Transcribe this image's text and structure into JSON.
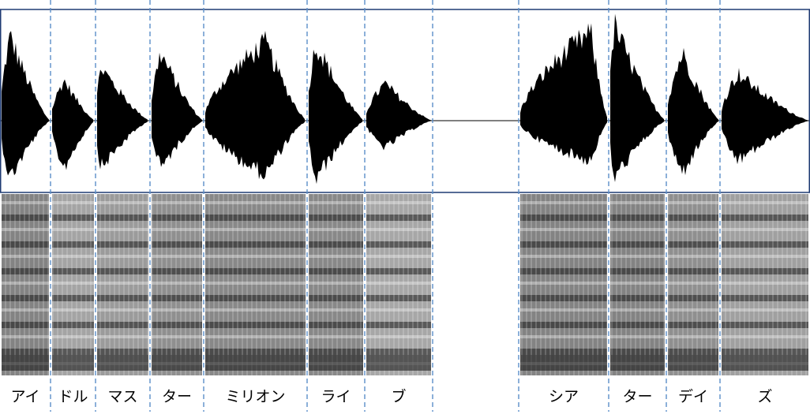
{
  "segments": [
    {
      "label": "アイ",
      "start": 0,
      "end": 64
    },
    {
      "label": "ドル",
      "start": 64,
      "end": 121
    },
    {
      "label": "マス",
      "start": 121,
      "end": 190
    },
    {
      "label": "ター",
      "start": 190,
      "end": 258
    },
    {
      "label": "ミリオン",
      "start": 258,
      "end": 389
    },
    {
      "label": "ライ",
      "start": 389,
      "end": 462
    },
    {
      "label": "ブ",
      "start": 462,
      "end": 548
    },
    {
      "label": "",
      "start": 548,
      "end": 657
    },
    {
      "label": "シア",
      "start": 657,
      "end": 771
    },
    {
      "label": "ター",
      "start": 771,
      "end": 844
    },
    {
      "label": "デイ",
      "start": 844,
      "end": 912
    },
    {
      "label": "ズ",
      "start": 912,
      "end": 1026
    }
  ],
  "colors": {
    "waveform": "#000000",
    "frame": "#1f3b73",
    "divider": "#5b8fc9",
    "spectrogram_dark": "#111111",
    "spectrogram_light": "#ffffff"
  }
}
